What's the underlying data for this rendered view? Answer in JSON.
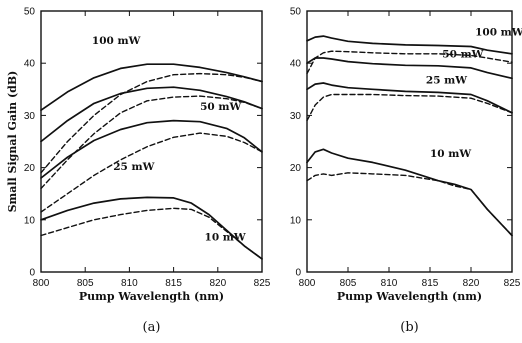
{
  "chart_data": [
    {
      "type": "line",
      "panel_label": "(a)",
      "xlabel": "Pump Wavelength (nm)",
      "ylabel": "Small Signal Gain (dB)",
      "xlim": [
        800,
        825
      ],
      "ylim": [
        0,
        50
      ],
      "xticks": [
        800,
        805,
        810,
        815,
        820,
        825
      ],
      "yticks": [
        0,
        10,
        20,
        30,
        40,
        50
      ],
      "grid": false,
      "series": [
        {
          "style": "solid",
          "x": [
            800,
            803,
            806,
            809,
            812,
            815,
            818,
            821,
            823,
            825
          ],
          "y": [
            31,
            34.5,
            37.2,
            39,
            39.8,
            39.8,
            39.2,
            38.2,
            37.4,
            36.5
          ]
        },
        {
          "style": "dashed",
          "x": [
            800,
            803,
            806,
            809,
            812,
            815,
            818,
            821,
            823,
            825
          ],
          "y": [
            19,
            25,
            30,
            34,
            36.5,
            37.8,
            38,
            37.8,
            37.3,
            36.5
          ]
        },
        {
          "style": "solid",
          "x": [
            800,
            803,
            806,
            809,
            812,
            815,
            818,
            821,
            823,
            825
          ],
          "y": [
            25,
            29,
            32.3,
            34.2,
            35.2,
            35.4,
            34.8,
            33.6,
            32.6,
            31.3
          ]
        },
        {
          "style": "dashed",
          "x": [
            800,
            803,
            806,
            809,
            812,
            815,
            818,
            821,
            823,
            825
          ],
          "y": [
            16,
            21.5,
            26.5,
            30.5,
            32.8,
            33.5,
            33.7,
            33.2,
            32.5,
            31.3
          ]
        },
        {
          "style": "solid",
          "x": [
            800,
            803,
            806,
            809,
            812,
            815,
            818,
            821,
            823,
            825
          ],
          "y": [
            18,
            22,
            25.2,
            27.3,
            28.6,
            29,
            28.8,
            27.5,
            25.7,
            23
          ]
        },
        {
          "style": "dashed",
          "x": [
            800,
            803,
            806,
            809,
            812,
            815,
            818,
            821,
            823,
            825
          ],
          "y": [
            11.5,
            15,
            18.5,
            21.5,
            24,
            25.8,
            26.6,
            26,
            24.8,
            23
          ]
        },
        {
          "style": "solid",
          "x": [
            800,
            803,
            806,
            809,
            812,
            815,
            817,
            819,
            821,
            823,
            825
          ],
          "y": [
            10,
            11.8,
            13.2,
            14,
            14.3,
            14.2,
            13.2,
            11,
            8,
            5,
            2.5
          ]
        },
        {
          "style": "dashed",
          "x": [
            800,
            803,
            806,
            809,
            812,
            815,
            817,
            819,
            821,
            823,
            825
          ],
          "y": [
            7,
            8.5,
            10,
            11,
            11.8,
            12.2,
            12,
            10.5,
            7.8,
            5,
            2.5
          ]
        }
      ],
      "annotations": [
        {
          "text": "100 mW",
          "x": 808.5,
          "y": 42
        },
        {
          "text": "50 mW",
          "x": 818,
          "y": 31
        },
        {
          "text": "25 mW",
          "x": 810.5,
          "y": 19.5
        },
        {
          "text": "10 mW",
          "x": 818.5,
          "y": 6
        }
      ]
    },
    {
      "type": "line",
      "panel_label": "(b)",
      "xlabel": "Pump Wavelength (nm)",
      "ylabel": "",
      "xlim": [
        800,
        825
      ],
      "ylim": [
        0,
        50
      ],
      "xticks": [
        800,
        805,
        810,
        815,
        820,
        825
      ],
      "yticks": [
        0,
        10,
        20,
        30,
        40,
        50
      ],
      "grid": false,
      "series": [
        {
          "style": "solid",
          "x": [
            800,
            801,
            802,
            803,
            805,
            808,
            812,
            816,
            820,
            822,
            825
          ],
          "y": [
            44.3,
            45,
            45.2,
            44.8,
            44.2,
            43.8,
            43.5,
            43.4,
            43.2,
            42.5,
            41.8
          ]
        },
        {
          "style": "dashed",
          "x": [
            800,
            801,
            802,
            803,
            805,
            808,
            812,
            816,
            820,
            822,
            825
          ],
          "y": [
            38,
            41,
            42,
            42.3,
            42.2,
            42,
            41.8,
            41.8,
            41.5,
            41,
            40.2
          ]
        },
        {
          "style": "solid",
          "x": [
            800,
            801,
            802,
            803,
            805,
            808,
            812,
            816,
            820,
            822,
            825
          ],
          "y": [
            40,
            41,
            41,
            40.8,
            40.3,
            39.9,
            39.6,
            39.5,
            39.1,
            38.2,
            37.1
          ]
        },
        {
          "style": "dashed",
          "x": [
            800,
            801,
            802,
            803,
            805,
            808,
            812,
            816,
            820,
            822,
            825
          ],
          "y": [
            29,
            32,
            33.5,
            34,
            34,
            34,
            33.8,
            33.7,
            33.3,
            32.3,
            30.5
          ]
        },
        {
          "style": "solid",
          "x": [
            800,
            801,
            802,
            803,
            805,
            808,
            812,
            816,
            820,
            822,
            825
          ],
          "y": [
            35,
            36,
            36.2,
            35.8,
            35.3,
            35,
            34.6,
            34.4,
            34,
            32.8,
            30.5
          ]
        },
        {
          "style": "solid",
          "x": [
            800,
            801,
            802,
            803,
            805,
            808,
            812,
            816,
            818,
            820,
            822,
            825
          ],
          "y": [
            21,
            23,
            23.5,
            22.8,
            21.8,
            21,
            19.5,
            17.5,
            16.8,
            15.8,
            12,
            7
          ]
        },
        {
          "style": "dashed",
          "x": [
            800,
            801,
            802,
            803,
            805,
            808,
            812,
            816,
            818,
            820,
            822,
            825
          ],
          "y": [
            17.5,
            18.5,
            18.8,
            18.5,
            19,
            18.8,
            18.5,
            17.5,
            16.5,
            15.8,
            12,
            7
          ]
        }
      ],
      "annotations": [
        {
          "text": "100 mW",
          "x": 820.5,
          "y": 44.5
        },
        {
          "text": "50 mW",
          "x": 816.5,
          "y": 40.5
        },
        {
          "text": "25 mW",
          "x": 814.5,
          "y": 35.5
        },
        {
          "text": "10 mW",
          "x": 815,
          "y": 21.5
        }
      ]
    }
  ]
}
